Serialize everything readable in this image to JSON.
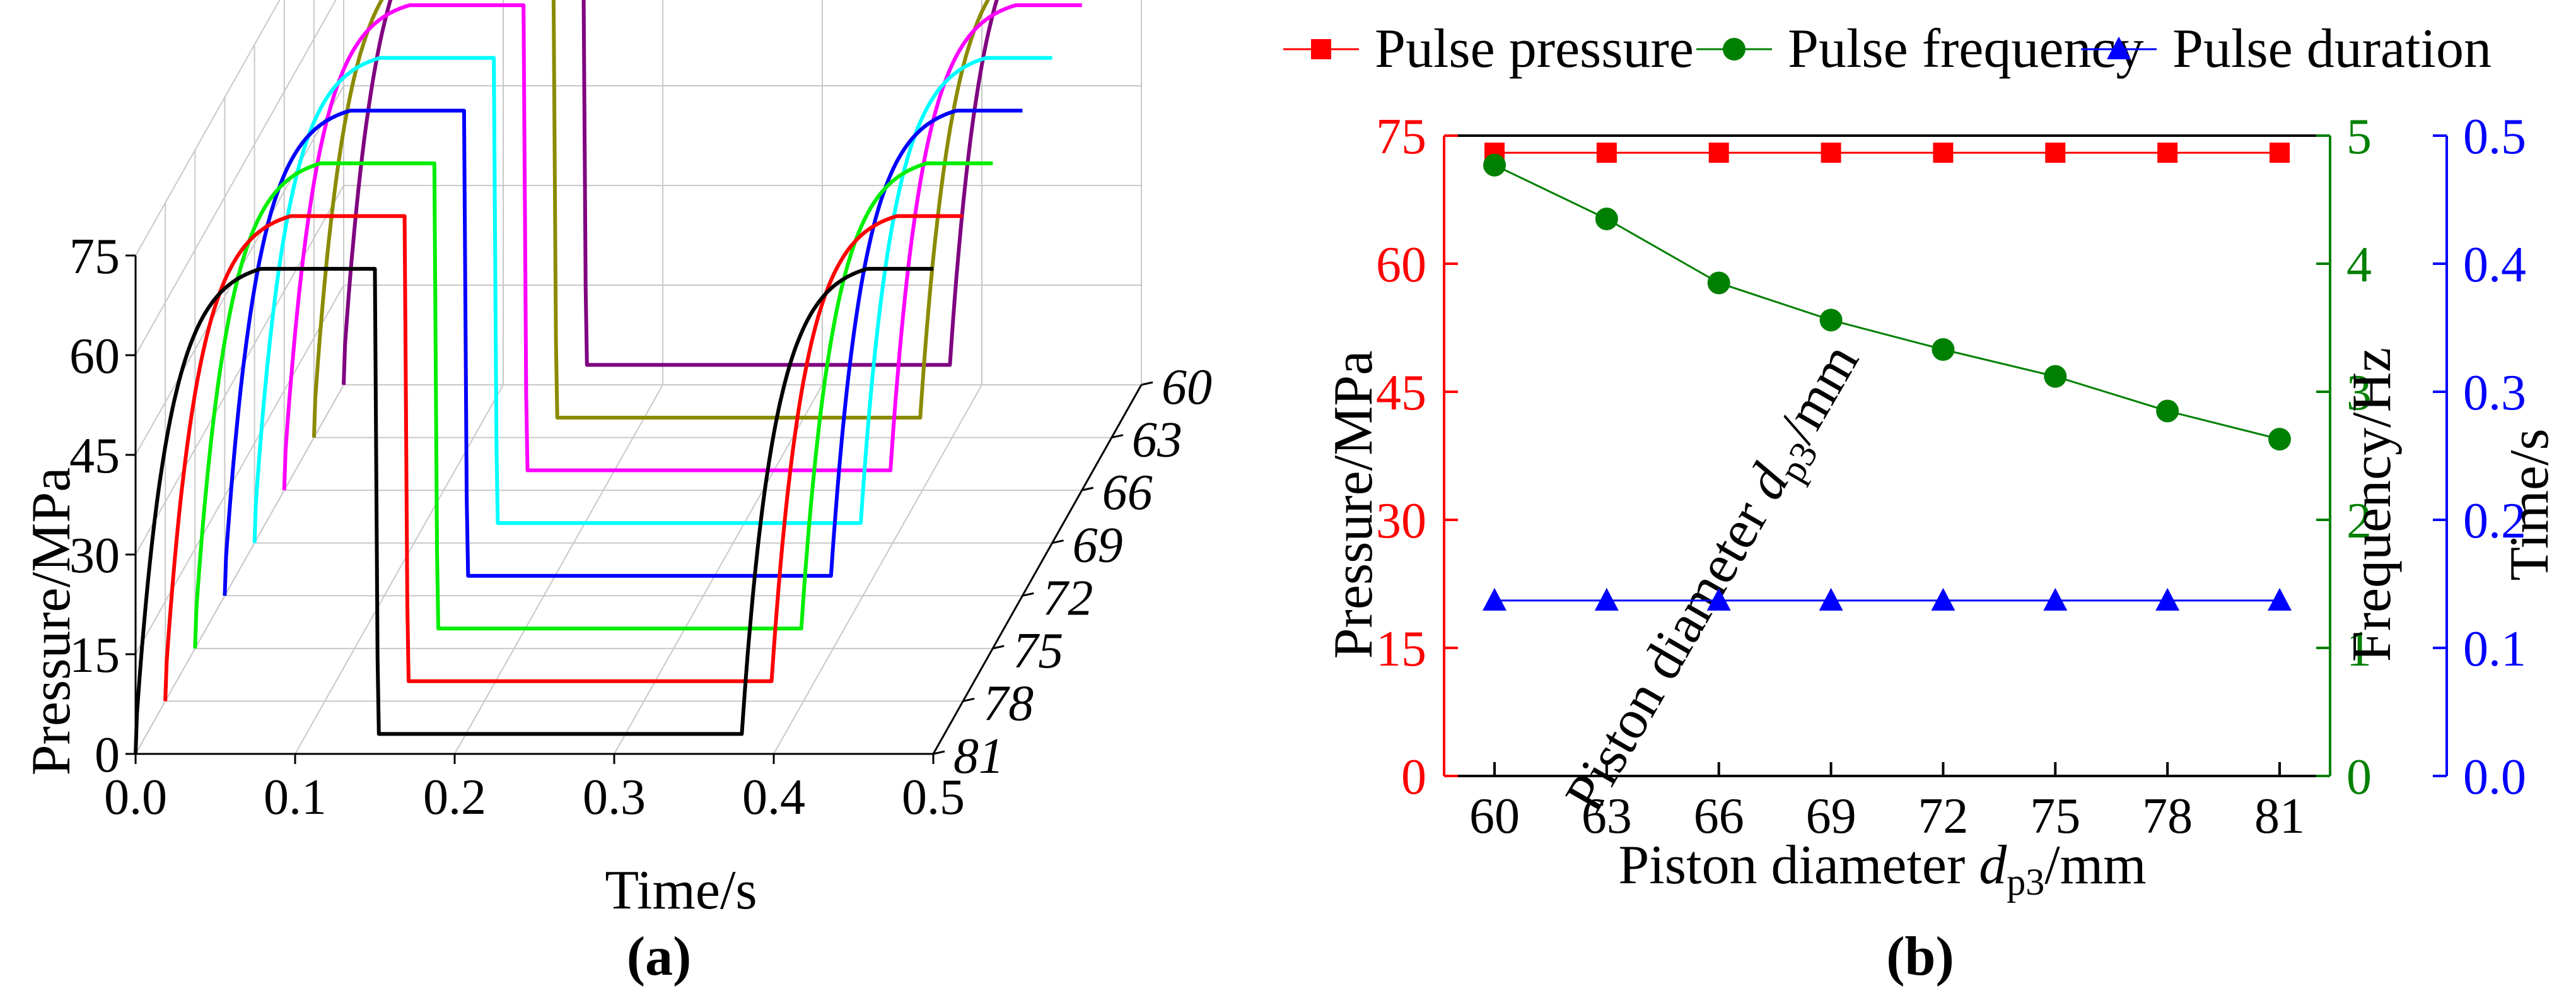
{
  "chart_data": [
    {
      "panel": "a",
      "type": "line",
      "caption": "(a)",
      "xlabel": "Time/s",
      "ylabel": "Pressure/MPa",
      "zlabel_prefix": "Piston diameter ",
      "zlabel_var": "d",
      "zlabel_sub": "p3",
      "zlabel_suffix": "/mm",
      "xlim": [
        0.0,
        0.5
      ],
      "ylim": [
        0,
        75
      ],
      "xticks": [
        "0.0",
        "0.1",
        "0.2",
        "0.3",
        "0.4",
        "0.5"
      ],
      "yticks": [
        "0",
        "15",
        "30",
        "45",
        "60",
        "75"
      ],
      "zticks": [
        "60",
        "63",
        "66",
        "69",
        "72",
        "75",
        "78",
        "81"
      ],
      "pulse": {
        "period": 0.38,
        "high": 73,
        "low": 3,
        "rise_time": 0.02,
        "rise_start": 0.0,
        "fall_start": 0.15,
        "fall_time": 0.002
      },
      "series": [
        {
          "name": "81",
          "color": "#000000"
        },
        {
          "name": "78",
          "color": "#ff0000"
        },
        {
          "name": "75",
          "color": "#00ee00"
        },
        {
          "name": "72",
          "color": "#0000ff"
        },
        {
          "name": "69",
          "color": "#00ffff"
        },
        {
          "name": "66",
          "color": "#ff00ff"
        },
        {
          "name": "63",
          "color": "#8b8b00"
        },
        {
          "name": "60",
          "color": "#800080"
        }
      ]
    },
    {
      "panel": "b",
      "type": "line",
      "caption": "(b)",
      "xlabel_prefix": "Piston diameter ",
      "xlabel_var": "d",
      "xlabel_sub": "p3",
      "xlabel_suffix": "/mm",
      "categories": [
        "60",
        "63",
        "66",
        "69",
        "72",
        "75",
        "78",
        "81"
      ],
      "axes": {
        "left": {
          "label": "Pressure/MPa",
          "color": "#ff0000",
          "ylim": [
            0,
            75
          ],
          "ticks": [
            "0",
            "15",
            "30",
            "45",
            "60",
            "75"
          ]
        },
        "right1": {
          "label": "Frequency/Hz",
          "color": "#008000",
          "ylim": [
            0,
            5
          ],
          "ticks": [
            "0",
            "1",
            "2",
            "3",
            "4",
            "5"
          ]
        },
        "right2": {
          "label": "Time/s",
          "color": "#0000ff",
          "ylim": [
            0,
            0.5
          ],
          "ticks": [
            "0.0",
            "0.1",
            "0.2",
            "0.3",
            "0.4",
            "0.5"
          ]
        }
      },
      "series": [
        {
          "name": "Pulse pressure",
          "axis": "left",
          "marker": "square",
          "color": "#ff0000",
          "line_color": "#ff0000",
          "values": [
            73,
            73,
            73,
            73,
            73,
            73,
            73,
            73
          ]
        },
        {
          "name": "Pulse frequency",
          "axis": "right1",
          "marker": "circle",
          "color": "#008000",
          "line_color": "#008000",
          "values": [
            4.77,
            4.35,
            3.85,
            3.56,
            3.33,
            3.12,
            2.85,
            2.63
          ]
        },
        {
          "name": "Pulse duration",
          "axis": "right2",
          "marker": "triangle",
          "color": "#0000ff",
          "line_color": "#0000ff",
          "values": [
            0.137,
            0.137,
            0.137,
            0.137,
            0.137,
            0.137,
            0.137,
            0.137
          ]
        }
      ]
    }
  ]
}
